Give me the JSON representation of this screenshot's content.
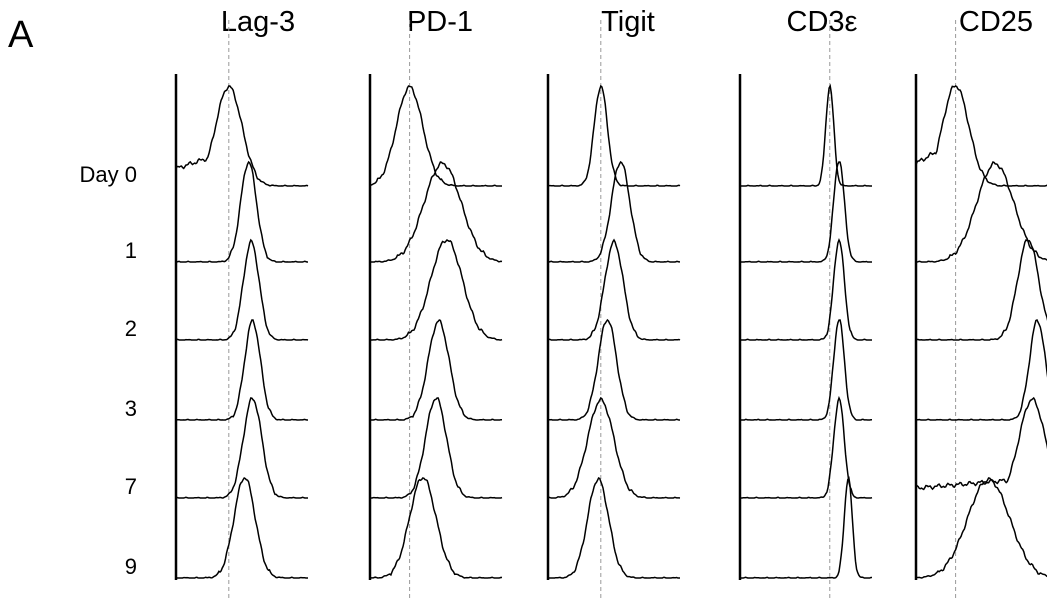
{
  "figure": {
    "panel_label": "A",
    "row_labels": [
      "Day 0",
      "1",
      "2",
      "3",
      "7",
      "9"
    ]
  },
  "chart_data": {
    "type": "histogram",
    "layout": "stacked offset histograms, one column per marker",
    "grid": false,
    "legend": "none",
    "x_axis": "relative fluorescence intensity (unlabeled)",
    "y_axis": "normalized event count per row (unlabeled)",
    "reference_line": "dashed vertical line at Day 0 peak",
    "markers": [
      {
        "name": "Lag-3",
        "day_peak_positions": [
          0.4,
          0.55,
          0.57,
          0.58,
          0.58,
          0.52
        ],
        "day_widths": [
          0.1,
          0.06,
          0.06,
          0.06,
          0.07,
          0.08
        ],
        "day_shoulder": [
          0.35,
          0.0,
          0.0,
          0.0,
          0.0,
          0.0
        ]
      },
      {
        "name": "PD-1",
        "day_peak_positions": [
          0.3,
          0.55,
          0.58,
          0.52,
          0.5,
          0.4
        ],
        "day_widths": [
          0.1,
          0.14,
          0.12,
          0.08,
          0.08,
          0.1
        ],
        "day_shoulder": [
          0.0,
          0.0,
          0.0,
          0.0,
          0.0,
          0.0
        ]
      },
      {
        "name": "Tigit",
        "day_peak_positions": [
          0.4,
          0.55,
          0.5,
          0.45,
          0.4,
          0.38
        ],
        "day_widths": [
          0.05,
          0.07,
          0.07,
          0.07,
          0.1,
          0.08
        ],
        "day_shoulder": [
          0.0,
          0.0,
          0.0,
          0.0,
          0.0,
          0.0
        ]
      },
      {
        "name": "CD3ε",
        "day_peak_positions": [
          0.68,
          0.75,
          0.75,
          0.75,
          0.75,
          0.82
        ],
        "day_widths": [
          0.03,
          0.04,
          0.04,
          0.04,
          0.04,
          0.03
        ],
        "day_shoulder": [
          0.0,
          0.0,
          0.0,
          0.0,
          0.0,
          0.0
        ]
      },
      {
        "name": "CD25",
        "day_peak_positions": [
          0.3,
          0.6,
          0.85,
          0.92,
          0.88,
          0.55
        ],
        "day_widths": [
          0.1,
          0.14,
          0.08,
          0.06,
          0.1,
          0.16
        ],
        "day_shoulder": [
          0.45,
          0.0,
          0.0,
          0.0,
          0.2,
          0.0
        ]
      }
    ]
  }
}
